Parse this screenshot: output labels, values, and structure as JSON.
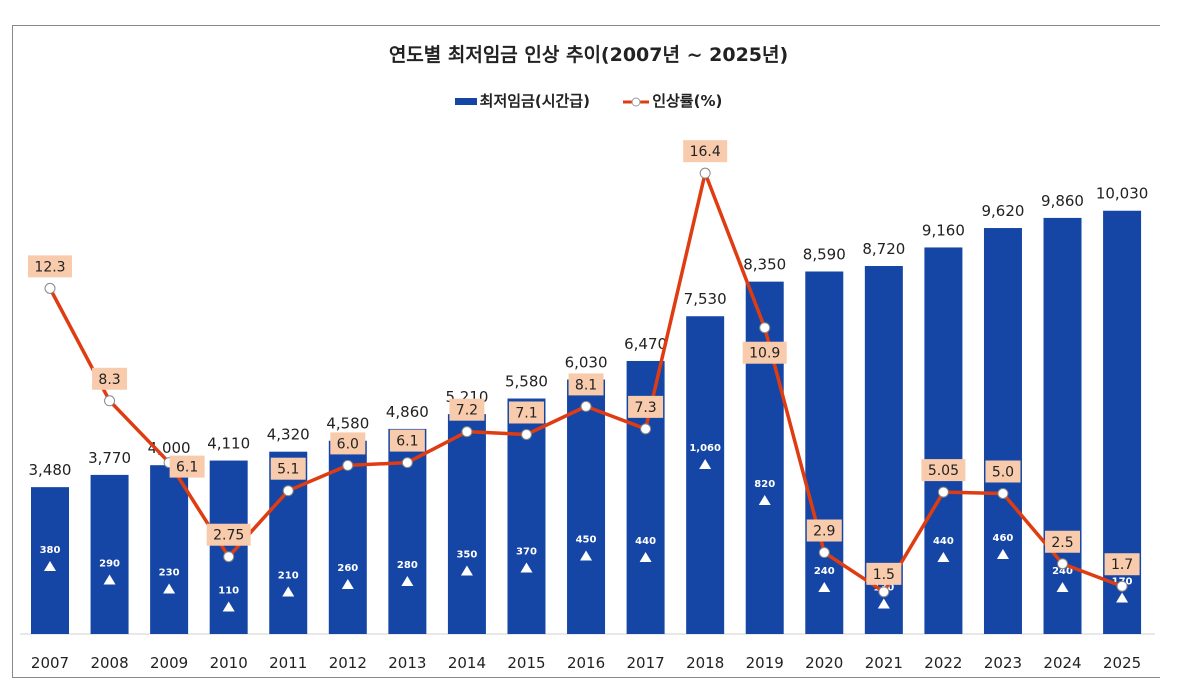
{
  "chart_data": {
    "type": "bar+line",
    "title": "연도별 최저임금 인상 추이(2007년 ~ 2025년)",
    "categories": [
      "2007",
      "2008",
      "2009",
      "2010",
      "2011",
      "2012",
      "2013",
      "2014",
      "2015",
      "2016",
      "2017",
      "2018",
      "2019",
      "2020",
      "2021",
      "2022",
      "2023",
      "2024",
      "2025"
    ],
    "series": [
      {
        "name": "최저임금(시간급)",
        "type": "bar",
        "color": "#1546a5",
        "values": [
          3480,
          3770,
          4000,
          4110,
          4320,
          4580,
          4860,
          5210,
          5580,
          6030,
          6470,
          7530,
          8350,
          8590,
          8720,
          9160,
          9620,
          9860,
          10030
        ],
        "labels": [
          "3,480",
          "3,770",
          "4,000",
          "4,110",
          "4,320",
          "4,580",
          "4,860",
          "5,210",
          "5,580",
          "6,030",
          "6,470",
          "7,530",
          "8,350",
          "8,590",
          "8,720",
          "9,160",
          "9,620",
          "9,860",
          "10,030"
        ],
        "increase": [
          "380",
          "290",
          "230",
          "110",
          "210",
          "260",
          "280",
          "350",
          "370",
          "450",
          "440",
          "1,060",
          "820",
          "240",
          "130",
          "440",
          "460",
          "240",
          "170"
        ]
      },
      {
        "name": "인상률(%)",
        "type": "line",
        "color": "#e03c12",
        "values": [
          12.3,
          8.3,
          6.1,
          2.75,
          5.1,
          6.0,
          6.1,
          7.2,
          7.1,
          8.1,
          7.3,
          16.4,
          10.9,
          2.9,
          1.5,
          5.05,
          5.0,
          2.5,
          1.7
        ],
        "labels": [
          "12.3",
          "8.3",
          "6.1",
          "2.75",
          "5.1",
          "6.0",
          "6.1",
          "7.2",
          "7.1",
          "8.1",
          "7.3",
          "16.4",
          "10.9",
          "2.9",
          "1.5",
          "5.05",
          "5.0",
          "2.5",
          "1.7"
        ]
      }
    ],
    "legend": "top",
    "grid": false,
    "label_box_color": "#f8cbad"
  }
}
